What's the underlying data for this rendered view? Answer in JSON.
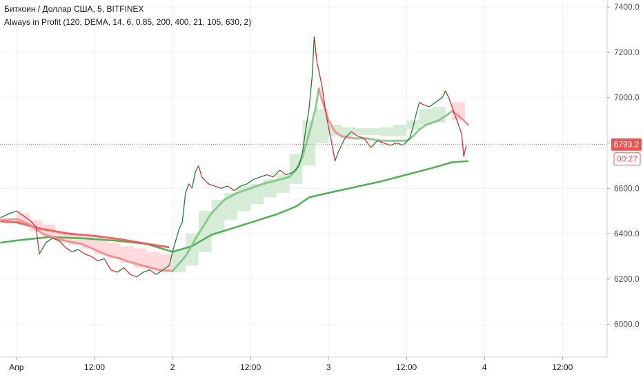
{
  "header": {
    "symbol_line": "Биткоин / Доллар США, 5, BITFINEX",
    "indicator_line": "Always in Profit (120, DEMA, 14, 6, 0.85, 200, 400, 21, 105, 630, 2)"
  },
  "price_axis": {
    "current_price_label": "6793.2",
    "countdown_label": "00:27"
  },
  "colors": {
    "up": "#1e7d32",
    "down": "#d32f2f",
    "green_band": "#c8e6c9",
    "red_band": "#ffcdd2",
    "slow_green": "#4caf50",
    "fast_green": "#81c784",
    "red_line": "#ef5350",
    "price_tag": "#ef5350"
  },
  "chart_data": {
    "type": "line",
    "title": "Биткоин / Доллар США, 5, BITFINEX",
    "ylim": [
      5900,
      7450
    ],
    "xlim": [
      0,
      87
    ],
    "y_ticks": [
      6000,
      6200,
      6400,
      6600,
      6800,
      7000,
      7200,
      7400
    ],
    "y_tick_labels": [
      "6000.0",
      "6200.0",
      "6400.0",
      "6600.0",
      "6800.0",
      "7000.0",
      "7200.0",
      "7400.0"
    ],
    "x_ticks": [
      {
        "label": "Апр",
        "x": 0
      },
      {
        "label": "12:00",
        "x": 12
      },
      {
        "label": "2",
        "x": 24
      },
      {
        "label": "12:00",
        "x": 36
      },
      {
        "label": "3",
        "x": 48
      },
      {
        "label": "12:00",
        "x": 60
      },
      {
        "label": "4",
        "x": 72
      },
      {
        "label": "12:00",
        "x": 84
      }
    ],
    "current_price": 6793.2,
    "series": [
      {
        "kind": "price",
        "points": [
          [
            -2.5,
            6470
          ],
          [
            -1,
            6490
          ],
          [
            0,
            6500
          ],
          [
            1,
            6480
          ],
          [
            2,
            6460
          ],
          [
            3,
            6430
          ],
          [
            3.5,
            6310
          ],
          [
            4.5,
            6360
          ],
          [
            5.5,
            6380
          ],
          [
            6.5,
            6370
          ],
          [
            7.5,
            6340
          ],
          [
            8.5,
            6320
          ],
          [
            9.5,
            6330
          ],
          [
            10.5,
            6310
          ],
          [
            11.5,
            6300
          ],
          [
            12.5,
            6280
          ],
          [
            13.5,
            6290
          ],
          [
            14.5,
            6240
          ],
          [
            15.5,
            6230
          ],
          [
            16.5,
            6250
          ],
          [
            17.5,
            6220
          ],
          [
            18.5,
            6210
          ],
          [
            19.5,
            6230
          ],
          [
            20.5,
            6240
          ],
          [
            21.5,
            6220
          ],
          [
            22.5,
            6240
          ],
          [
            23.5,
            6260
          ],
          [
            24,
            6320
          ],
          [
            24.5,
            6370
          ],
          [
            25,
            6420
          ],
          [
            25.5,
            6450
          ],
          [
            26,
            6580
          ],
          [
            26.5,
            6620
          ],
          [
            27,
            6600
          ],
          [
            27.5,
            6670
          ],
          [
            28,
            6700
          ],
          [
            28.5,
            6650
          ],
          [
            29.5,
            6620
          ],
          [
            30.5,
            6610
          ],
          [
            31.5,
            6600
          ],
          [
            32.5,
            6610
          ],
          [
            33.5,
            6590
          ],
          [
            34.5,
            6610
          ],
          [
            35.5,
            6620
          ],
          [
            36.5,
            6640
          ],
          [
            37.5,
            6650
          ],
          [
            38.5,
            6660
          ],
          [
            39.5,
            6650
          ],
          [
            40.5,
            6680
          ],
          [
            41.5,
            6660
          ],
          [
            42.5,
            6670
          ],
          [
            43.5,
            6700
          ],
          [
            44,
            6760
          ],
          [
            44.5,
            6860
          ],
          [
            45,
            6950
          ],
          [
            45.5,
            7100
          ],
          [
            45.8,
            7270
          ],
          [
            46.2,
            7160
          ],
          [
            46.5,
            7120
          ],
          [
            47,
            7050
          ],
          [
            47.5,
            6950
          ],
          [
            48,
            6870
          ],
          [
            48.5,
            6800
          ],
          [
            49,
            6720
          ],
          [
            49.5,
            6760
          ],
          [
            50.5,
            6820
          ],
          [
            51.5,
            6850
          ],
          [
            52.5,
            6830
          ],
          [
            53.5,
            6820
          ],
          [
            54.5,
            6780
          ],
          [
            55.5,
            6810
          ],
          [
            56.5,
            6800
          ],
          [
            57.5,
            6790
          ],
          [
            58.5,
            6800
          ],
          [
            59.5,
            6790
          ],
          [
            60.5,
            6820
          ],
          [
            61,
            6870
          ],
          [
            61.5,
            6930
          ],
          [
            62,
            6980
          ],
          [
            62.5,
            6970
          ],
          [
            63.5,
            6960
          ],
          [
            64.5,
            6980
          ],
          [
            65.5,
            7000
          ],
          [
            66,
            7030
          ],
          [
            66.5,
            7000
          ],
          [
            67,
            6960
          ],
          [
            67.5,
            6920
          ],
          [
            68,
            6880
          ],
          [
            68.5,
            6840
          ],
          [
            68.8,
            6740
          ],
          [
            69.2,
            6790
          ]
        ]
      },
      {
        "kind": "slow_line",
        "points": [
          [
            -2.5,
            6360
          ],
          [
            0,
            6370
          ],
          [
            5,
            6385
          ],
          [
            10,
            6380
          ],
          [
            15,
            6370
          ],
          [
            20,
            6355
          ],
          [
            24,
            6320
          ],
          [
            27,
            6345
          ],
          [
            30,
            6395
          ],
          [
            35,
            6440
          ],
          [
            40,
            6485
          ],
          [
            43,
            6520
          ],
          [
            45,
            6560
          ],
          [
            48,
            6580
          ],
          [
            52,
            6605
          ],
          [
            56,
            6630
          ],
          [
            60,
            6660
          ],
          [
            64,
            6690
          ],
          [
            67,
            6715
          ],
          [
            69.5,
            6720
          ]
        ]
      },
      {
        "kind": "red_line",
        "points": [
          [
            -2.5,
            6455
          ],
          [
            0,
            6450
          ],
          [
            4,
            6420
          ],
          [
            8,
            6400
          ],
          [
            12,
            6390
          ],
          [
            16,
            6375
          ],
          [
            20,
            6355
          ],
          [
            23.5,
            6340
          ]
        ]
      },
      {
        "kind": "fast_line",
        "points": [
          [
            -2.5,
            6460
          ],
          [
            0,
            6465
          ],
          [
            2,
            6440
          ],
          [
            4,
            6400
          ],
          [
            6,
            6380
          ],
          [
            8,
            6365
          ],
          [
            10,
            6355
          ],
          [
            12,
            6330
          ],
          [
            14,
            6305
          ],
          [
            16,
            6290
          ],
          [
            18,
            6270
          ],
          [
            20,
            6255
          ],
          [
            22,
            6240
          ],
          [
            24,
            6235
          ],
          [
            26,
            6300
          ],
          [
            28,
            6400
          ],
          [
            30,
            6490
          ],
          [
            32,
            6550
          ],
          [
            34,
            6580
          ],
          [
            36,
            6600
          ],
          [
            38,
            6620
          ],
          [
            40,
            6635
          ],
          [
            42,
            6650
          ],
          [
            43,
            6680
          ],
          [
            44,
            6740
          ],
          [
            45,
            6840
          ],
          [
            46,
            6950
          ],
          [
            46.5,
            7040
          ],
          [
            47,
            6990
          ],
          [
            48,
            6900
          ],
          [
            49,
            6850
          ],
          [
            50,
            6830
          ],
          [
            52,
            6820
          ],
          [
            54,
            6820
          ],
          [
            56,
            6810
          ],
          [
            58,
            6810
          ],
          [
            60,
            6810
          ],
          [
            61,
            6830
          ],
          [
            62,
            6860
          ],
          [
            63,
            6880
          ],
          [
            65,
            6900
          ],
          [
            66.5,
            6930
          ],
          [
            67,
            6940
          ],
          [
            68,
            6920
          ],
          [
            69.5,
            6880
          ]
        ]
      }
    ],
    "green_bands": [
      [
        24,
        26,
        6230,
        6330
      ],
      [
        26,
        28,
        6260,
        6400
      ],
      [
        28,
        30,
        6320,
        6500
      ],
      [
        30,
        32,
        6400,
        6550
      ],
      [
        32,
        34,
        6460,
        6580
      ],
      [
        34,
        36,
        6500,
        6610
      ],
      [
        36,
        38,
        6530,
        6620
      ],
      [
        38,
        40,
        6560,
        6640
      ],
      [
        40,
        42,
        6580,
        6660
      ],
      [
        42,
        44,
        6620,
        6750
      ],
      [
        44,
        46,
        6700,
        6900
      ],
      [
        46,
        48,
        6800,
        6950
      ],
      [
        48,
        50,
        6830,
        6880
      ],
      [
        50,
        52,
        6830,
        6870
      ],
      [
        52,
        54,
        6835,
        6865
      ],
      [
        54,
        56,
        6835,
        6865
      ],
      [
        56,
        58,
        6830,
        6870
      ],
      [
        58,
        60,
        6830,
        6880
      ],
      [
        60,
        62,
        6860,
        6900
      ],
      [
        62,
        64,
        6880,
        6950
      ],
      [
        64,
        66,
        6890,
        6960
      ]
    ],
    "red_bands": [
      [
        0,
        2,
        6440,
        6490
      ],
      [
        2,
        4,
        6410,
        6460
      ],
      [
        4,
        6,
        6385,
        6440
      ],
      [
        6,
        8,
        6365,
        6410
      ],
      [
        8,
        10,
        6350,
        6395
      ],
      [
        10,
        12,
        6335,
        6385
      ],
      [
        12,
        14,
        6310,
        6375
      ],
      [
        14,
        16,
        6290,
        6360
      ],
      [
        16,
        18,
        6270,
        6345
      ],
      [
        18,
        20,
        6250,
        6335
      ],
      [
        20,
        22,
        6240,
        6320
      ],
      [
        22,
        24,
        6230,
        6310
      ],
      [
        67,
        69,
        6900,
        6980
      ]
    ]
  }
}
